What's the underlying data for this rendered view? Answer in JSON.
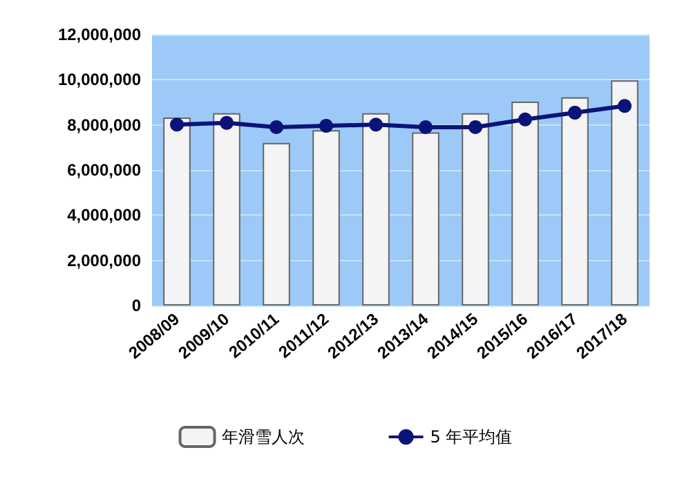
{
  "chart_data": {
    "type": "bar",
    "categories": [
      "2008/09",
      "2009/10",
      "2010/11",
      "2011/12",
      "2012/13",
      "2013/14",
      "2014/15",
      "2015/16",
      "2016/17",
      "2017/18"
    ],
    "series": [
      {
        "name": "年滑雪人次",
        "color": "#f4f4f4",
        "values": [
          8330000,
          8520000,
          7200000,
          7770000,
          8520000,
          7670000,
          8520000,
          9030000,
          9220000,
          9970000
        ]
      },
      {
        "name": "5 年平均值",
        "type": "line",
        "color": "#0a1478",
        "values": [
          8010000,
          8090000,
          7900000,
          7960000,
          8010000,
          7900000,
          7900000,
          8240000,
          8540000,
          8840000
        ]
      }
    ],
    "ylim": [
      0,
      12000000
    ],
    "yticks": [
      0,
      {
        "value": 2000000,
        "label": "2,000,000"
      },
      {
        "value": 4000000,
        "label": "4,000,000"
      },
      {
        "value": 6000000,
        "label": "6,000,000"
      },
      {
        "value": 8000000,
        "label": "8,000,000"
      },
      {
        "value": 10000000,
        "label": "10,000,000"
      },
      {
        "value": 12000000,
        "label": "12,000,000"
      }
    ],
    "grid": "y",
    "legend": "bottom",
    "marker": "circle"
  }
}
